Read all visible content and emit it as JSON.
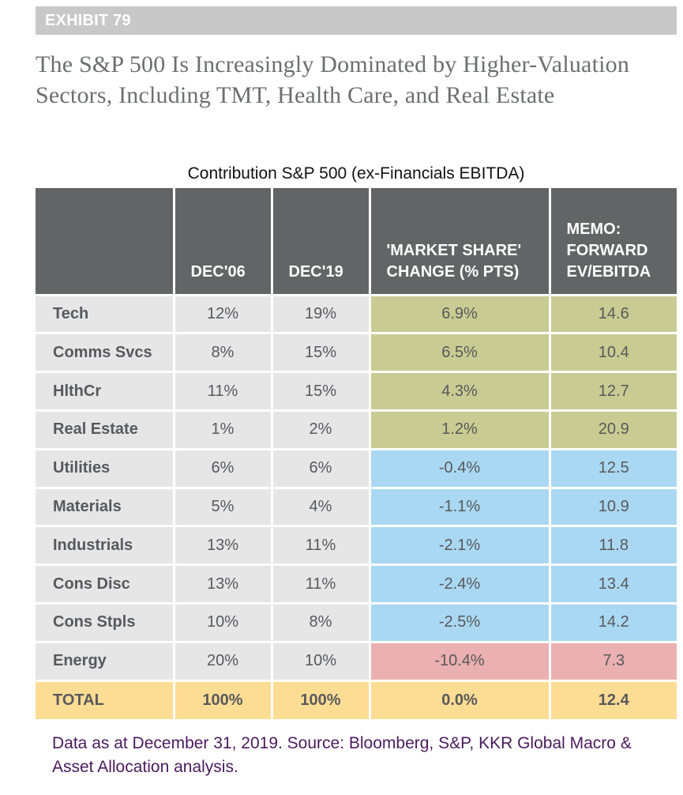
{
  "exhibit_label": "EXHIBIT 79",
  "headline": "The S&P 500 Is Increasingly Dominated by Higher-Valuation Sectors, Including TMT, Health Care, and Real Estate",
  "footnote": "Data as at December 31, 2019. Source: Bloomberg, S&P, KKR Global Macro & Asset Allocation analysis.",
  "colors": {
    "header_bg": "#636466",
    "positive_change": "#c9cc92",
    "negative_change": "#aad8f2",
    "largest_decline": "#ebb0b1",
    "total_row": "#fddc94",
    "label_cells": "#e6e6e7",
    "footnote_text": "#4a1a5e"
  },
  "chart_data": {
    "type": "table",
    "title": "Contribution S&P 500 (ex-Financials EBITDA)",
    "columns": [
      "",
      "DEC'06",
      "DEC'19",
      "'MARKET SHARE' CHANGE (% PTS)",
      "MEMO: FORWARD EV/EBITDA"
    ],
    "rows": [
      {
        "sector": "Tech",
        "dec06": "12%",
        "dec19": "19%",
        "change": "6.9%",
        "ev_ebitda": "14.6",
        "group": "pos"
      },
      {
        "sector": "Comms Svcs",
        "dec06": "8%",
        "dec19": "15%",
        "change": "6.5%",
        "ev_ebitda": "10.4",
        "group": "pos"
      },
      {
        "sector": "HlthCr",
        "dec06": "11%",
        "dec19": "15%",
        "change": "4.3%",
        "ev_ebitda": "12.7",
        "group": "pos"
      },
      {
        "sector": "Real Estate",
        "dec06": "1%",
        "dec19": "2%",
        "change": "1.2%",
        "ev_ebitda": "20.9",
        "group": "pos"
      },
      {
        "sector": "Utilities",
        "dec06": "6%",
        "dec19": "6%",
        "change": "-0.4%",
        "ev_ebitda": "12.5",
        "group": "neg"
      },
      {
        "sector": "Materials",
        "dec06": "5%",
        "dec19": "4%",
        "change": "-1.1%",
        "ev_ebitda": "10.9",
        "group": "neg"
      },
      {
        "sector": "Industrials",
        "dec06": "13%",
        "dec19": "11%",
        "change": "-2.1%",
        "ev_ebitda": "11.8",
        "group": "neg"
      },
      {
        "sector": "Cons Disc",
        "dec06": "13%",
        "dec19": "11%",
        "change": "-2.4%",
        "ev_ebitda": "13.4",
        "group": "neg"
      },
      {
        "sector": "Cons Stpls",
        "dec06": "10%",
        "dec19": "8%",
        "change": "-2.5%",
        "ev_ebitda": "14.2",
        "group": "neg"
      },
      {
        "sector": "Energy",
        "dec06": "20%",
        "dec19": "10%",
        "change": "-10.4%",
        "ev_ebitda": "7.3",
        "group": "worst"
      }
    ],
    "total": {
      "sector": "TOTAL",
      "dec06": "100%",
      "dec19": "100%",
      "change": "0.0%",
      "ev_ebitda": "12.4"
    }
  }
}
